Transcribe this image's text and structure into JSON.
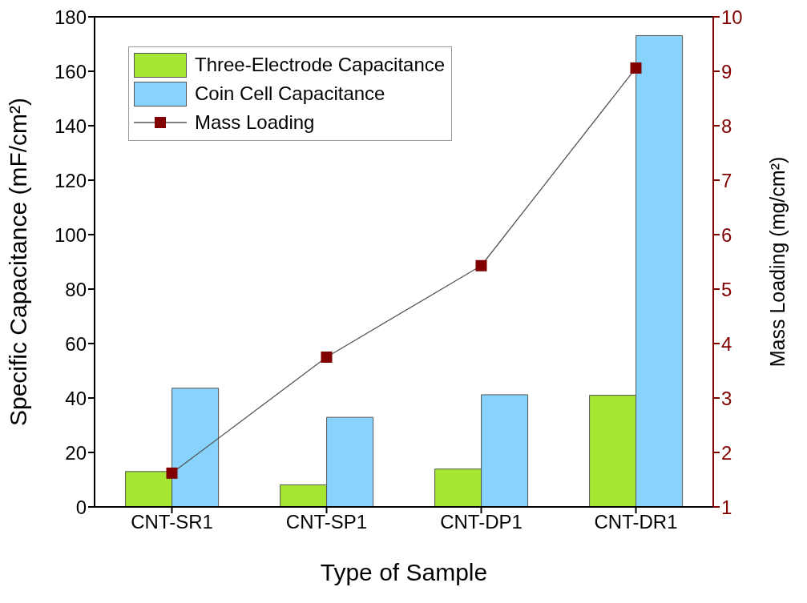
{
  "chart_data": {
    "type": "bar",
    "xlabel": "Type of Sample",
    "ylabel": "Specific Capacitance (mF/cm²)",
    "y2label": "Mass Loading (mg/cm²)",
    "categories": [
      "CNT-SR1",
      "CNT-SP1",
      "CNT-DP1",
      "CNT-DR1"
    ],
    "series": [
      {
        "name": "Three-Electrode Capacitance",
        "color": "#a6e633",
        "values": [
          13.0,
          8.1,
          13.9,
          41.0
        ]
      },
      {
        "name": "Coin Cell Capacitance",
        "color": "#87d3fb",
        "values": [
          43.6,
          32.9,
          41.2,
          173.1
        ]
      },
      {
        "name": "Mass Loading",
        "type": "line",
        "axis": "y2",
        "color": "#800000",
        "values": [
          1.62,
          3.75,
          5.43,
          9.06
        ],
        "marker": "square"
      }
    ],
    "ylim": [
      0,
      180
    ],
    "yticks": [
      0,
      20,
      40,
      60,
      80,
      100,
      120,
      140,
      160,
      180
    ],
    "y2lim": [
      1,
      10
    ],
    "y2ticks": [
      1,
      2,
      3,
      4,
      5,
      6,
      7,
      8,
      9,
      10
    ],
    "grid": false,
    "legend": "top left"
  }
}
